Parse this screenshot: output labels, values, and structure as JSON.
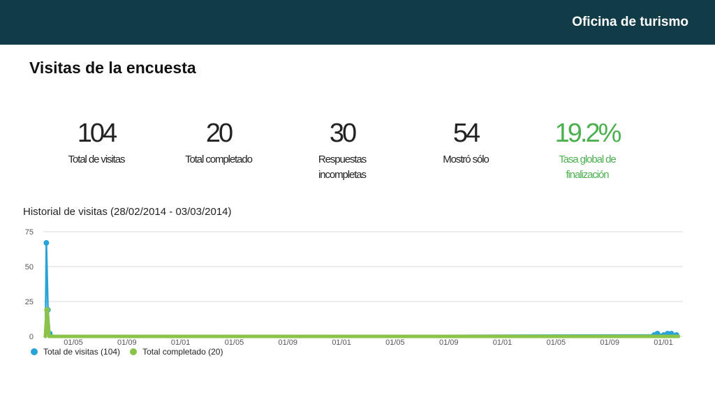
{
  "header": {
    "organization": "Oficina de turismo"
  },
  "page": {
    "title": "Visitas de la encuesta"
  },
  "colors": {
    "brand": "#113b46",
    "accent": "#4caf50",
    "series_visits": "#29a3d6",
    "series_completed": "#8bc34a"
  },
  "stats": [
    {
      "value": "104",
      "label": "Total de visitas"
    },
    {
      "value": "20",
      "label": "Total completado"
    },
    {
      "value": "30",
      "label": "Respuestas incompletas"
    },
    {
      "value": "54",
      "label": "Mostró sólo"
    },
    {
      "value": "19.2%",
      "label": "Tasa global de finalización"
    }
  ],
  "history": {
    "title": "Historial de visitas (28/02/2014 - 03/03/2014)"
  },
  "chart_data": {
    "type": "line",
    "title": "Historial de visitas (28/02/2014 - 03/03/2014)",
    "ylim": [
      0,
      75
    ],
    "yticks": [
      0,
      25,
      50,
      75
    ],
    "x_tick_labels": [
      "01/05",
      "01/09",
      "01/01",
      "01/05",
      "01/09",
      "01/01",
      "01/05",
      "01/09",
      "01/01",
      "01/05",
      "01/09",
      "01/01"
    ],
    "xlim": [
      0,
      100
    ],
    "grid": true,
    "legend_position": "bottom-left",
    "series": [
      {
        "name": "Total de visitas (104)",
        "color": "#29a3d6",
        "points": [
          [
            0,
            0
          ],
          [
            0.15,
            67
          ],
          [
            0.4,
            19
          ],
          [
            0.7,
            2
          ],
          [
            1,
            0
          ],
          [
            95.5,
            1
          ],
          [
            96,
            2
          ],
          [
            97,
            1
          ],
          [
            97.6,
            2
          ],
          [
            98.2,
            2
          ],
          [
            99,
            1
          ],
          [
            99.3,
            0
          ]
        ]
      },
      {
        "name": "Total completado (20)",
        "color": "#8bc34a",
        "points": [
          [
            0,
            0
          ],
          [
            0.25,
            19
          ],
          [
            0.6,
            0
          ],
          [
            1,
            0
          ],
          [
            99.3,
            0
          ]
        ]
      }
    ]
  },
  "legend": {
    "items": [
      "Total de visitas (104)",
      "Total completado (20)"
    ]
  }
}
